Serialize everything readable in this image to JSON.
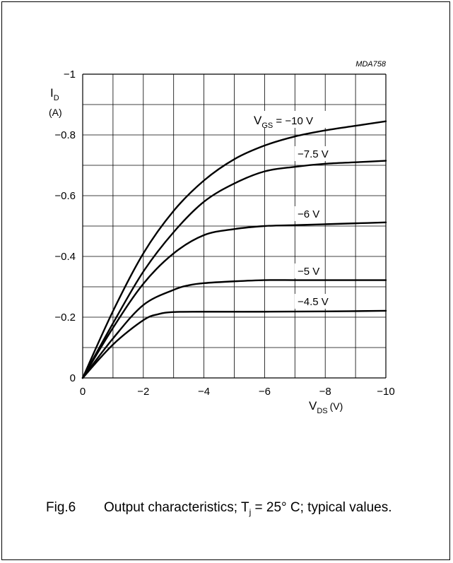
{
  "chart_data": {
    "type": "line",
    "figure_id": "MDA758",
    "xlabel": "V",
    "xlabel_sub": "DS",
    "xlabel_unit": "(V)",
    "ylabel": "I",
    "ylabel_sub": "D",
    "ylabel_unit": "(A)",
    "xlim": [
      0,
      -10
    ],
    "ylim": [
      0,
      -1
    ],
    "xticks": [
      0,
      -2,
      -4,
      -6,
      -8,
      -10
    ],
    "xtick_labels": [
      "0",
      "−2",
      "−4",
      "−6",
      "−8",
      "−10"
    ],
    "yticks": [
      0,
      -0.2,
      -0.4,
      -0.6,
      -0.8,
      -1
    ],
    "ytick_labels": [
      "0",
      "−0.2",
      "−0.4",
      "−0.6",
      "−0.8",
      "−1"
    ],
    "grid": true,
    "series": [
      {
        "label_main": "V",
        "label_sub": "GS",
        "label_value": " = −10 V",
        "x": [
          0,
          -1,
          -2,
          -3,
          -4,
          -5,
          -6,
          -7,
          -8,
          -9,
          -10
        ],
        "y": [
          0,
          -0.22,
          -0.41,
          -0.55,
          -0.65,
          -0.72,
          -0.765,
          -0.795,
          -0.815,
          -0.83,
          -0.845
        ]
      },
      {
        "label_main": "",
        "label_sub": "",
        "label_value": "−7.5 V",
        "x": [
          0,
          -1,
          -2,
          -3,
          -4,
          -5,
          -6,
          -7,
          -8,
          -9,
          -10
        ],
        "y": [
          0,
          -0.18,
          -0.35,
          -0.48,
          -0.58,
          -0.64,
          -0.68,
          -0.695,
          -0.705,
          -0.71,
          -0.715
        ]
      },
      {
        "label_main": "",
        "label_sub": "",
        "label_value": "−6 V",
        "x": [
          0,
          -1,
          -2,
          -3,
          -4,
          -5,
          -6,
          -7,
          -8,
          -9,
          -10
        ],
        "y": [
          0,
          -0.165,
          -0.31,
          -0.41,
          -0.47,
          -0.49,
          -0.5,
          -0.503,
          -0.506,
          -0.509,
          -0.512
        ]
      },
      {
        "label_main": "",
        "label_sub": "",
        "label_value": "−5 V",
        "x": [
          0,
          -1,
          -2,
          -3,
          -3.5,
          -4,
          -5,
          -6,
          -7,
          -8,
          -9,
          -10
        ],
        "y": [
          0,
          -0.13,
          -0.24,
          -0.29,
          -0.305,
          -0.312,
          -0.318,
          -0.322,
          -0.322,
          -0.322,
          -0.322,
          -0.322
        ]
      },
      {
        "label_main": "",
        "label_sub": "",
        "label_value": "−4.5 V",
        "x": [
          0,
          -1,
          -2,
          -2.5,
          -3,
          -4,
          -6,
          -8,
          -10
        ],
        "y": [
          0,
          -0.11,
          -0.19,
          -0.21,
          -0.217,
          -0.218,
          -0.218,
          -0.219,
          -0.221
        ]
      }
    ]
  },
  "caption": {
    "number": "Fig.6",
    "text_part1": "Output characteristics; T",
    "text_sub": "j",
    "text_part2": " = 25° C; typical values."
  }
}
